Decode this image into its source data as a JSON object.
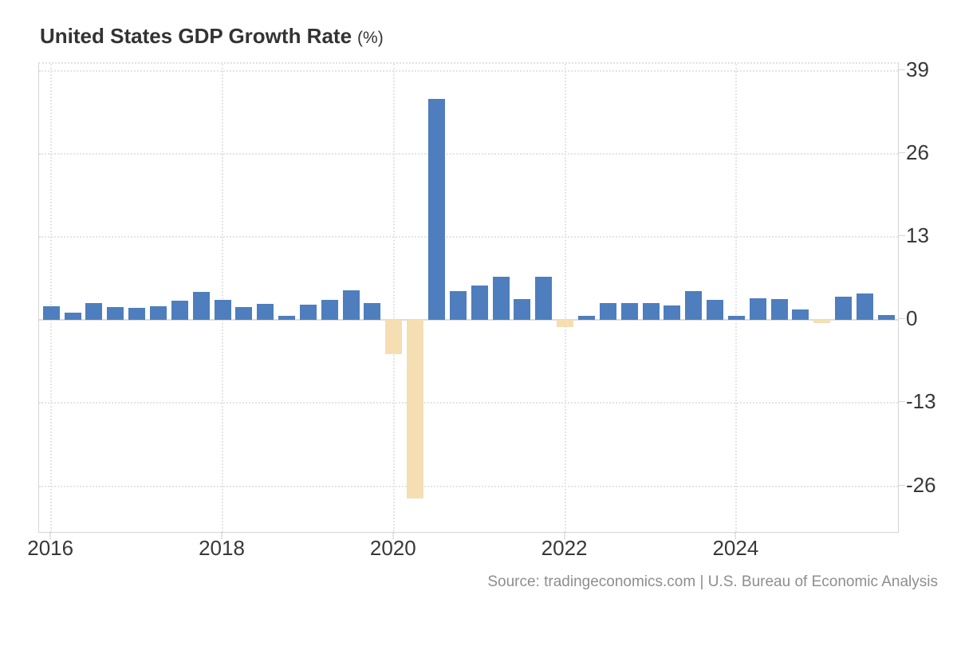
{
  "header": {
    "title": "United States GDP Growth Rate",
    "unit_suffix": "(%)"
  },
  "footer": {
    "source": "Source: tradingeconomics.com | U.S. Bureau of Economic Analysis"
  },
  "chart_data": {
    "type": "bar",
    "title": "United States GDP Growth Rate",
    "unit": "%",
    "legend": "none",
    "grid": "dotted",
    "ylim": [
      -33.6,
      40.1
    ],
    "y_ticks": [
      39,
      26,
      13,
      0,
      -13,
      -26
    ],
    "x_tick_labels": [
      "2016",
      "2018",
      "2020",
      "2022",
      "2024"
    ],
    "x_tick_every_n_bars": 8,
    "positive_color": "#4e7ebd",
    "negative_color": "#f4deb2",
    "categories": [
      "2016 Q1",
      "2016 Q2",
      "2016 Q3",
      "2016 Q4",
      "2017 Q1",
      "2017 Q2",
      "2017 Q3",
      "2017 Q4",
      "2018 Q1",
      "2018 Q2",
      "2018 Q3",
      "2018 Q4",
      "2019 Q1",
      "2019 Q2",
      "2019 Q3",
      "2019 Q4",
      "2020 Q1",
      "2020 Q2",
      "2020 Q3",
      "2020 Q4",
      "2021 Q1",
      "2021 Q2",
      "2021 Q3",
      "2021 Q4",
      "2022 Q1",
      "2022 Q2",
      "2022 Q3",
      "2022 Q4",
      "2023 Q1",
      "2023 Q2",
      "2023 Q3",
      "2023 Q4",
      "2024 Q1",
      "2024 Q2",
      "2024 Q3",
      "2024 Q4",
      "2025 Q1",
      "2025 Q2",
      "2025 Q3",
      "2025 Q4"
    ],
    "values": [
      2.1,
      1.2,
      2.7,
      2.0,
      1.9,
      2.2,
      3.0,
      4.4,
      3.2,
      2.0,
      2.5,
      0.6,
      2.4,
      3.2,
      4.6,
      2.7,
      -5.3,
      -27.9,
      34.6,
      4.5,
      5.4,
      6.8,
      3.3,
      6.8,
      -1.1,
      0.7,
      2.7,
      2.7,
      2.7,
      2.3,
      4.5,
      3.2,
      0.7,
      3.4,
      3.3,
      1.6,
      -0.5,
      3.6,
      4.2,
      0.8
    ],
    "source": "Source: tradingeconomics.com | U.S. Bureau of Economic Analysis"
  }
}
